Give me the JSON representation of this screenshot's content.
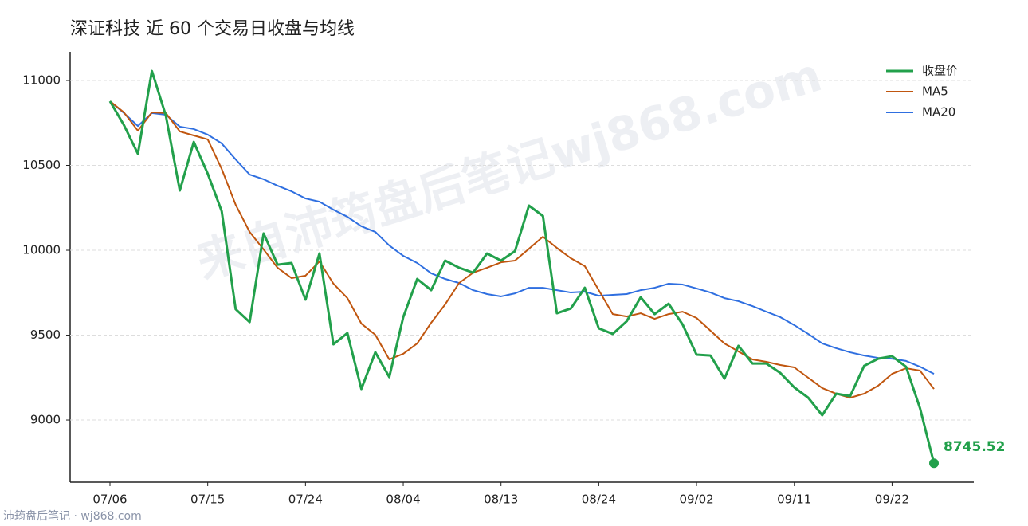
{
  "chart_data": {
    "type": "line",
    "title": "深证科技 近 60 个交易日收盘与均线",
    "watermark": "来自沛筠盘后笔记wj868.com",
    "footer": "沛筠盘后笔记 · wj868.com",
    "categories": [
      "07/06",
      null,
      null,
      null,
      null,
      null,
      null,
      "07/15",
      null,
      null,
      null,
      null,
      null,
      null,
      "07/24",
      null,
      null,
      null,
      null,
      null,
      null,
      "08/04",
      null,
      null,
      null,
      null,
      null,
      null,
      "08/13",
      null,
      null,
      null,
      null,
      null,
      null,
      "08/24",
      null,
      null,
      null,
      null,
      null,
      null,
      "09/02",
      null,
      null,
      null,
      null,
      null,
      null,
      "09/11",
      null,
      null,
      null,
      null,
      null,
      null,
      "09/22",
      null,
      null,
      null
    ],
    "series": [
      {
        "name": "收盘价",
        "color": "#22a04b",
        "values": [
          10878,
          10737,
          10568,
          11056,
          10793,
          10352,
          10638,
          10451,
          10230,
          9653,
          9577,
          10099,
          9915,
          9925,
          9709,
          9981,
          9446,
          9512,
          9183,
          9399,
          9253,
          9606,
          9831,
          9765,
          9939,
          9897,
          9868,
          9981,
          9939,
          9995,
          10263,
          10202,
          9629,
          9657,
          9779,
          9540,
          9507,
          9582,
          9723,
          9624,
          9685,
          9563,
          9385,
          9380,
          9244,
          9437,
          9333,
          9333,
          9277,
          9192,
          9131,
          9028,
          9155,
          9141,
          9319,
          9361,
          9376,
          9314,
          9070,
          8745.52
        ]
      },
      {
        "name": "MA5",
        "color": "#c0560f",
        "values": [
          10878,
          10812,
          10704,
          10812,
          10808,
          10700,
          10676,
          10653,
          10479,
          10268,
          10108,
          10005,
          9897,
          9836,
          9850,
          9934,
          9803,
          9718,
          9568,
          9502,
          9357,
          9390,
          9451,
          9573,
          9681,
          9807,
          9868,
          9897,
          9929,
          9939,
          10009,
          10080,
          10014,
          9953,
          9906,
          9765,
          9624,
          9610,
          9629,
          9596,
          9624,
          9638,
          9601,
          9526,
          9451,
          9404,
          9357,
          9343,
          9324,
          9310,
          9249,
          9188,
          9155,
          9131,
          9155,
          9202,
          9272,
          9305,
          9291,
          9183
        ]
      },
      {
        "name": "MA20",
        "color": "#2f6fe0",
        "values": [
          10878,
          10808,
          10732,
          10808,
          10798,
          10728,
          10714,
          10681,
          10629,
          10535,
          10446,
          10418,
          10380,
          10347,
          10305,
          10286,
          10239,
          10197,
          10141,
          10108,
          10028,
          9967,
          9925,
          9864,
          9831,
          9807,
          9765,
          9742,
          9728,
          9746,
          9779,
          9779,
          9765,
          9751,
          9756,
          9732,
          9737,
          9742,
          9765,
          9779,
          9803,
          9798,
          9775,
          9751,
          9718,
          9700,
          9671,
          9638,
          9606,
          9559,
          9507,
          9451,
          9423,
          9399,
          9380,
          9366,
          9361,
          9348,
          9314,
          9272
        ]
      }
    ],
    "ylim": [
      8634,
      11169
    ],
    "yticks": [
      9000,
      9500,
      10000,
      10500,
      11000
    ],
    "grid": true,
    "legend": "upper right"
  }
}
